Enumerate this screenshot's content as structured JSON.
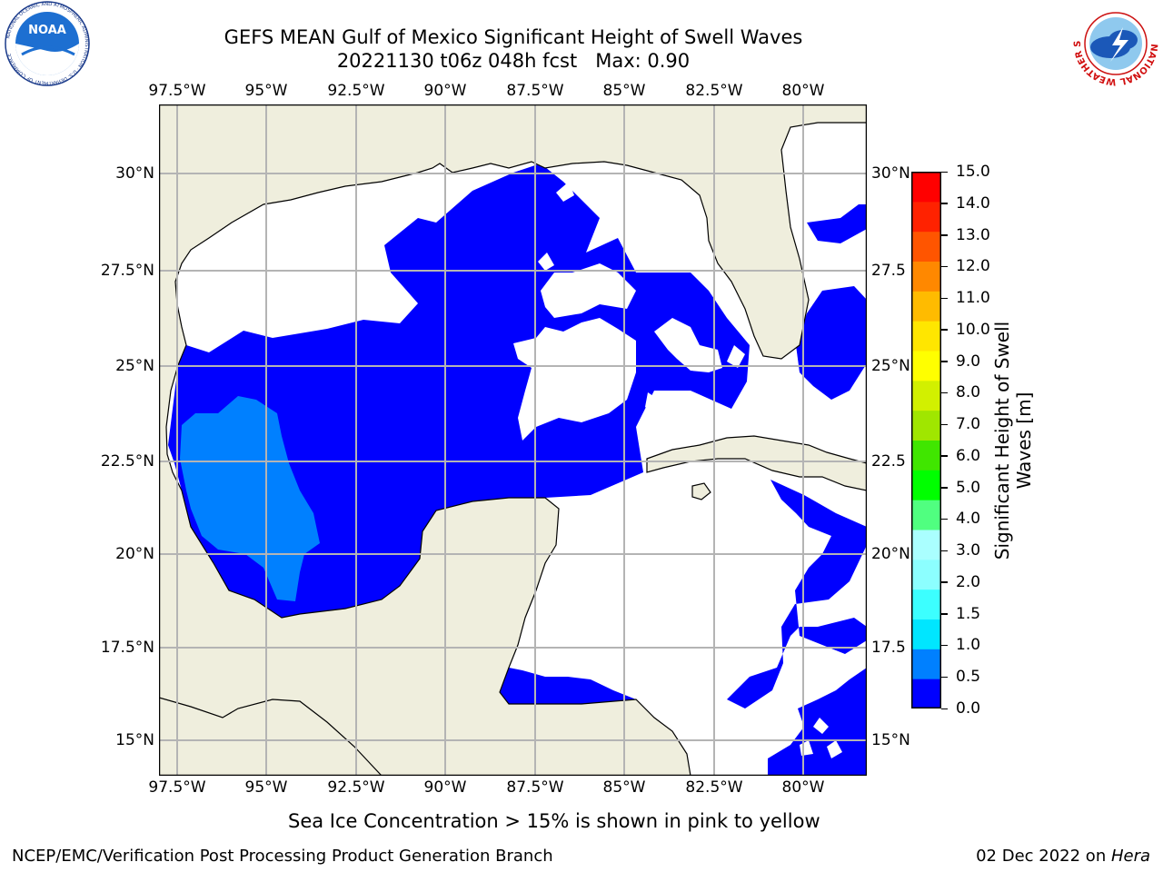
{
  "title": {
    "line1": "GEFS MEAN Gulf of Mexico Significant Height of Swell Waves",
    "line2": "20221130 t06z 048h fcst   Max: 0.90"
  },
  "logos": {
    "left": {
      "icon": "noaa-logo-icon",
      "text": "NOAA",
      "ring_text": "NATIONAL OCEANIC AND ATMOSPHERIC ADMINISTRATION · U.S. DEPARTMENT OF COMMERCE"
    },
    "right": {
      "icon": "nws-logo-icon",
      "ring_text": "NATIONAL WEATHER SERVICE"
    }
  },
  "map": {
    "lon_ticks": [
      "97.5°W",
      "95°W",
      "92.5°W",
      "90°W",
      "87.5°W",
      "85°W",
      "82.5°W",
      "80°W"
    ],
    "lat_ticks_left": [
      "30°N",
      "27.5°N",
      "25°N",
      "22.5°N",
      "20°N",
      "17.5°N",
      "15°N"
    ],
    "lat_ticks_right": [
      "30°N",
      "27.5",
      "25°N",
      "22.5",
      "20°N",
      "17.5",
      "15°N"
    ],
    "lon_range": [
      -98,
      -78.2
    ],
    "lat_range": [
      14,
      31.8
    ],
    "land_color": "#efeedd",
    "grid_color": "#b4b4b4"
  },
  "colorbar": {
    "title": "Significant Height of Swell Waves [m]",
    "labels": [
      "15.0",
      "14.0",
      "13.0",
      "12.0",
      "11.0",
      "10.0",
      "9.0",
      "8.0",
      "7.0",
      "6.0",
      "5.0",
      "4.0",
      "3.0",
      "2.0",
      "1.5",
      "1.0",
      "0.5",
      "0.0"
    ],
    "colors_bottom_to_top": [
      "#0000ff",
      "#0080ff",
      "#00e6ff",
      "#3cffff",
      "#8cffff",
      "#aaffff",
      "#50ff80",
      "#00ff00",
      "#40e600",
      "#a0e600",
      "#d2f000",
      "#ffff00",
      "#ffe600",
      "#ffbb00",
      "#ff8800",
      "#ff5500",
      "#ff2200",
      "#ff0000"
    ]
  },
  "ice_note": "Sea Ice Concentration > 15% is shown in pink to yellow",
  "footer": {
    "left": "NCEP/EMC/Verification Post Processing Product Generation Branch",
    "right_date": "02 Dec 2022 on ",
    "right_machine": "Hera"
  }
}
